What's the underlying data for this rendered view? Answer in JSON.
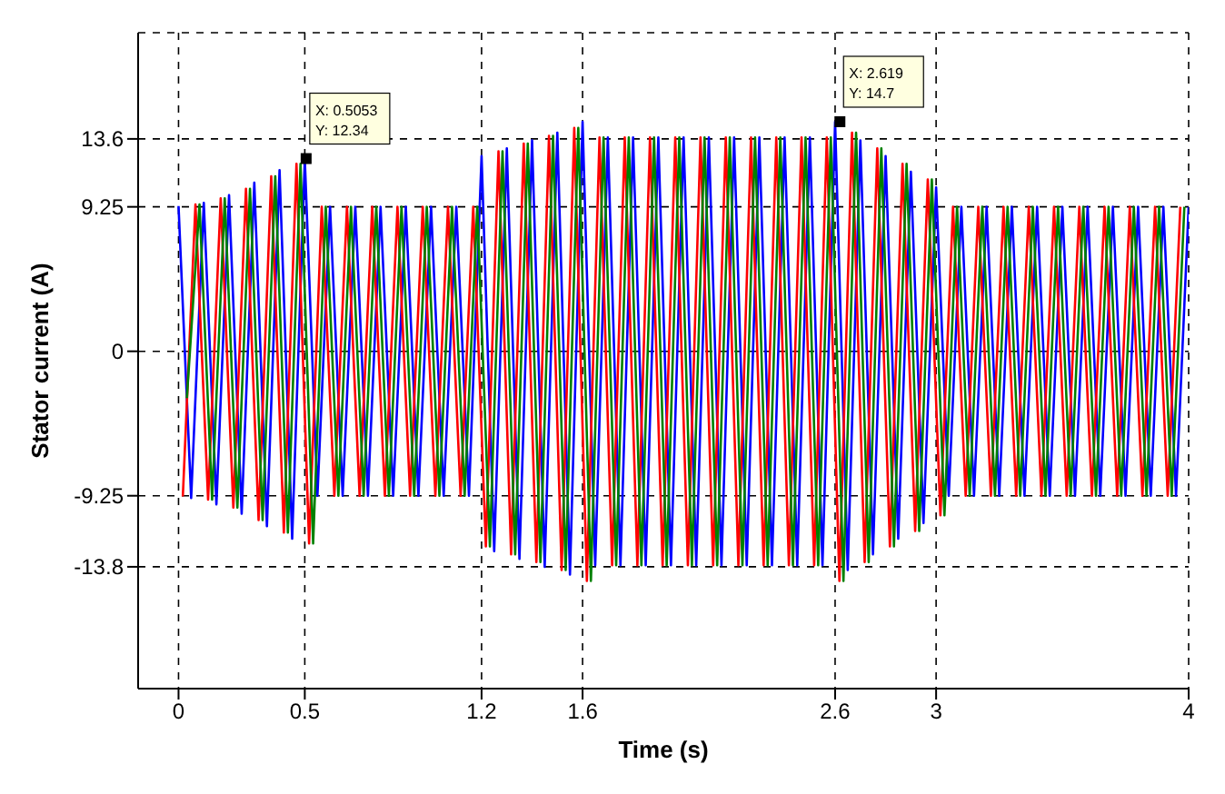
{
  "chart_data": {
    "type": "line",
    "xlabel": "Time (s)",
    "ylabel": "Stator current (A)",
    "xlim": [
      -0.16,
      4
    ],
    "xticks": [
      0,
      0.5,
      1.2,
      1.6,
      2.6,
      3,
      4
    ],
    "ylim": [
      -21.6,
      20.4
    ],
    "yticks": [
      13.6,
      9.25,
      0,
      -9.25,
      -13.8
    ],
    "grid": true,
    "legend": false,
    "marker": "none",
    "line_style": "solid",
    "annotations": [
      {
        "text": "X: 0.5053\nY: 12.34",
        "x": 0.5053,
        "y": 12.34
      },
      {
        "text": "X: 2.619\nY: 14.7",
        "x": 2.619,
        "y": 14.7
      }
    ],
    "series": [
      {
        "color": "#0000ff",
        "x": [
          0,
          0.05,
          0.1,
          0.15,
          0.2,
          0.25,
          0.3,
          0.35,
          0.4,
          0.45,
          0.5,
          0.55,
          0.6,
          0.65,
          0.7,
          0.75,
          0.8,
          0.85,
          0.9,
          0.95,
          1,
          1.05,
          1.1,
          1.15,
          1.2,
          1.25,
          1.3,
          1.35,
          1.4,
          1.45,
          1.5,
          1.55,
          1.6,
          1.65,
          1.7,
          1.75,
          1.8,
          1.85,
          1.9,
          1.95,
          2,
          2.05,
          2.1,
          2.15,
          2.2,
          2.25,
          2.3,
          2.35,
          2.4,
          2.45,
          2.5,
          2.55,
          2.6,
          2.65,
          2.7,
          2.75,
          2.8,
          2.85,
          2.9,
          2.95,
          3,
          3.05,
          3.1,
          3.15,
          3.2,
          3.25,
          3.3,
          3.35,
          3.4,
          3.45,
          3.5,
          3.55,
          3.6,
          3.65,
          3.7,
          3.75,
          3.8,
          3.85,
          3.9,
          3.95,
          4
        ],
        "values": [
          9.3,
          -9.4,
          9.5,
          -9.8,
          10,
          -10.4,
          10.8,
          -11.2,
          11.6,
          -12,
          12.3,
          -9.25,
          9.25,
          -9.25,
          9.25,
          -9.25,
          9.25,
          -9.25,
          9.25,
          -9.25,
          9.25,
          -9.25,
          9.25,
          -9.25,
          12.5,
          -12.8,
          13,
          -13.3,
          13.5,
          -13.8,
          14,
          -14.3,
          14.7,
          -13.7,
          13.7,
          -13.7,
          13.7,
          -13.7,
          13.7,
          -13.7,
          13.7,
          -13.7,
          13.7,
          -13.7,
          13.7,
          -13.7,
          13.7,
          -13.7,
          13.7,
          -13.7,
          13.7,
          -13.7,
          14.7,
          -14,
          13.5,
          -13,
          12.5,
          -12,
          11.5,
          -11,
          10.5,
          -9.25,
          9.25,
          -9.25,
          9.25,
          -9.25,
          9.25,
          -9.25,
          9.25,
          -9.25,
          9.25,
          -9.25,
          9.25,
          -9.25,
          9.25,
          -9.25,
          9.25,
          -9.25,
          9.25,
          -9.25,
          9.25
        ]
      },
      {
        "color": "#ff0000",
        "x": [
          0.017,
          0.067,
          0.117,
          0.167,
          0.217,
          0.267,
          0.317,
          0.367,
          0.417,
          0.467,
          0.517,
          0.567,
          0.617,
          0.667,
          0.717,
          0.767,
          0.817,
          0.867,
          0.917,
          0.967,
          1.017,
          1.067,
          1.117,
          1.167,
          1.217,
          1.267,
          1.317,
          1.367,
          1.417,
          1.467,
          1.517,
          1.567,
          1.617,
          1.667,
          1.717,
          1.767,
          1.817,
          1.867,
          1.917,
          1.967,
          2.017,
          2.067,
          2.117,
          2.167,
          2.217,
          2.267,
          2.317,
          2.367,
          2.417,
          2.467,
          2.517,
          2.567,
          2.617,
          2.667,
          2.717,
          2.767,
          2.817,
          2.867,
          2.917,
          2.967,
          3.017,
          3.067,
          3.117,
          3.167,
          3.217,
          3.267,
          3.317,
          3.367,
          3.417,
          3.467,
          3.517,
          3.567,
          3.617,
          3.667,
          3.717,
          3.767,
          3.817,
          3.867,
          3.917,
          3.967
        ],
        "values": [
          -9.3,
          9.4,
          -9.5,
          9.8,
          -10,
          10.4,
          -10.8,
          11.2,
          -11.6,
          12,
          -12.3,
          9.25,
          -9.25,
          9.25,
          -9.25,
          9.25,
          -9.25,
          9.25,
          -9.25,
          9.25,
          -9.25,
          9.25,
          -9.25,
          9.25,
          -12.5,
          12.8,
          -13,
          13.3,
          -13.5,
          13.8,
          -14,
          14.3,
          -14.7,
          13.7,
          -13.7,
          13.7,
          -13.7,
          13.7,
          -13.7,
          13.7,
          -13.7,
          13.7,
          -13.7,
          13.7,
          -13.7,
          13.7,
          -13.7,
          13.7,
          -13.7,
          13.7,
          -13.7,
          13.7,
          -14.7,
          14,
          -13.5,
          13,
          -12.5,
          12,
          -11.5,
          11,
          -10.5,
          9.25,
          -9.25,
          9.25,
          -9.25,
          9.25,
          -9.25,
          9.25,
          -9.25,
          9.25,
          -9.25,
          9.25,
          -9.25,
          9.25,
          -9.25,
          9.25,
          -9.25,
          9.25,
          -9.25,
          9.25
        ]
      },
      {
        "color": "#008000",
        "x": [
          0.033,
          0.083,
          0.133,
          0.183,
          0.233,
          0.283,
          0.333,
          0.383,
          0.433,
          0.483,
          0.533,
          0.583,
          0.633,
          0.683,
          0.733,
          0.783,
          0.833,
          0.883,
          0.933,
          0.983,
          1.033,
          1.083,
          1.133,
          1.183,
          1.233,
          1.283,
          1.333,
          1.383,
          1.433,
          1.483,
          1.533,
          1.583,
          1.633,
          1.683,
          1.733,
          1.783,
          1.833,
          1.883,
          1.933,
          1.983,
          2.033,
          2.083,
          2.133,
          2.183,
          2.233,
          2.283,
          2.333,
          2.383,
          2.433,
          2.483,
          2.533,
          2.583,
          2.633,
          2.683,
          2.733,
          2.783,
          2.833,
          2.883,
          2.933,
          2.983,
          3.033,
          3.083,
          3.133,
          3.183,
          3.233,
          3.283,
          3.333,
          3.383,
          3.433,
          3.483,
          3.533,
          3.583,
          3.633,
          3.683,
          3.733,
          3.783,
          3.833,
          3.883,
          3.933,
          3.983
        ],
        "values": [
          -3,
          9.4,
          -9.5,
          9.8,
          -10,
          10.4,
          -10.8,
          11.2,
          -11.6,
          12,
          -12.3,
          9.25,
          -9.25,
          9.25,
          -9.25,
          9.25,
          -9.25,
          9.25,
          -9.25,
          9.25,
          -9.25,
          9.25,
          -9.25,
          9.25,
          -12.5,
          12.8,
          -13,
          13.3,
          -13.5,
          13.8,
          -14,
          14.3,
          -14.7,
          13.7,
          -13.7,
          13.7,
          -13.7,
          13.7,
          -13.7,
          13.7,
          -13.7,
          13.7,
          -13.7,
          13.7,
          -13.7,
          13.7,
          -13.7,
          13.7,
          -13.7,
          13.7,
          -13.7,
          13.7,
          -14.7,
          14,
          -13.5,
          13,
          -12.5,
          12,
          -11.5,
          11,
          -10.5,
          9.25,
          -9.25,
          9.25,
          -9.25,
          9.25,
          -9.25,
          9.25,
          -9.25,
          9.25,
          -9.25,
          9.25,
          -9.25,
          9.25,
          -9.25,
          9.25,
          -9.25,
          9.25,
          -9.25,
          9.25
        ]
      }
    ]
  }
}
